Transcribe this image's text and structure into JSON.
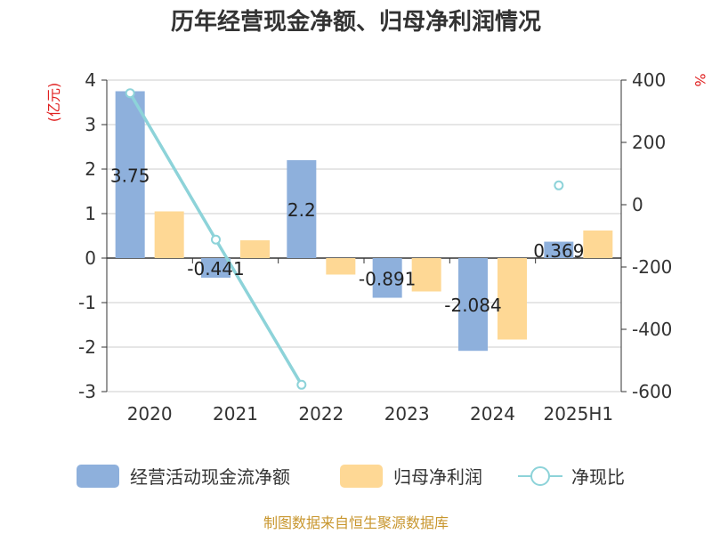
{
  "chart_data": {
    "type": "bar",
    "title": "历年经营现金净额、归母净利润情况",
    "categories": [
      "2020",
      "2021",
      "2022",
      "2023",
      "2024",
      "2025H1"
    ],
    "y_left": {
      "unit": "(亿元)",
      "range": [
        -3,
        4
      ],
      "ticks": [
        4,
        3,
        2,
        1,
        0,
        -1,
        -2,
        -3
      ]
    },
    "y_right": {
      "unit": "%",
      "range": [
        -600,
        400
      ],
      "ticks": [
        400,
        200,
        0,
        -200,
        -400,
        -600
      ]
    },
    "series": [
      {
        "name": "经营活动现金流净额",
        "type": "bar",
        "axis": "left",
        "color": "#8eb0dc",
        "values": [
          3.75,
          -0.441,
          2.2,
          -0.891,
          -2.084,
          0.369
        ],
        "labels": [
          "3.75",
          "-0.441",
          "2.2",
          "-0.891",
          "-2.084",
          "0.369"
        ]
      },
      {
        "name": "归母净利润",
        "type": "bar",
        "axis": "left",
        "color": "#fed895",
        "values": [
          1.05,
          0.4,
          -0.37,
          -0.75,
          -1.83,
          0.62
        ]
      },
      {
        "name": "净现比",
        "type": "line",
        "axis": "right",
        "color": "#8dd3d9",
        "values": [
          358,
          -112,
          -578,
          null,
          null,
          62
        ]
      }
    ],
    "grid": true,
    "legend": "bottom",
    "source": "制图数据来自恒生聚源数据库",
    "colors": {
      "title": "#333333",
      "unit_left": "#e02020",
      "unit_right": "#e02020",
      "source": "#c8962e"
    }
  }
}
